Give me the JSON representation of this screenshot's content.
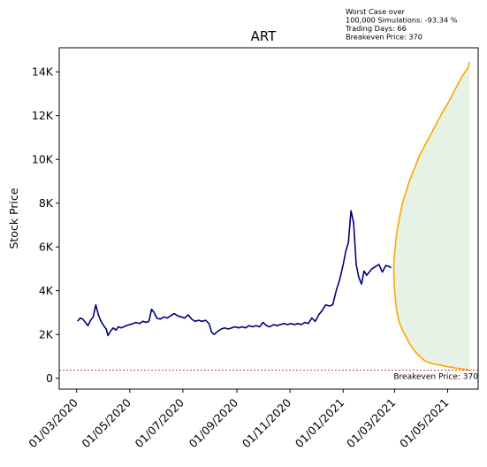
{
  "chart_data": {
    "type": "line",
    "title": "ART",
    "ylabel": "Stock Price",
    "xlabel": "",
    "ylim": [
      -500,
      15100
    ],
    "y_ticks": [
      {
        "value": 0,
        "label": "0"
      },
      {
        "value": 2000,
        "label": "2K"
      },
      {
        "value": 4000,
        "label": "4K"
      },
      {
        "value": 6000,
        "label": "6K"
      },
      {
        "value": 8000,
        "label": "8K"
      },
      {
        "value": 10000,
        "label": "10K"
      },
      {
        "value": 12000,
        "label": "12K"
      },
      {
        "value": 14000,
        "label": "14K"
      }
    ],
    "x_ticks": [
      {
        "date": "2020-03-01",
        "label": "01/03/2020"
      },
      {
        "date": "2020-05-01",
        "label": "01/05/2020"
      },
      {
        "date": "2020-07-01",
        "label": "01/07/2020"
      },
      {
        "date": "2020-09-01",
        "label": "01/09/2020"
      },
      {
        "date": "2020-11-01",
        "label": "01/11/2020"
      },
      {
        "date": "2021-01-01",
        "label": "01/01/2021"
      },
      {
        "date": "2021-03-01",
        "label": "01/03/2021"
      },
      {
        "date": "2021-05-01",
        "label": "01/05/2021"
      }
    ],
    "xlim": [
      "2020-02-10",
      "2021-06-05"
    ],
    "grid": false,
    "series": [
      {
        "role": "historical",
        "color": "#000080",
        "points": [
          [
            "2020-03-02",
            2600
          ],
          [
            "2020-03-05",
            2750
          ],
          [
            "2020-03-08",
            2700
          ],
          [
            "2020-03-11",
            2550
          ],
          [
            "2020-03-14",
            2400
          ],
          [
            "2020-03-17",
            2650
          ],
          [
            "2020-03-20",
            2800
          ],
          [
            "2020-03-23",
            3350
          ],
          [
            "2020-03-26",
            2900
          ],
          [
            "2020-03-29",
            2600
          ],
          [
            "2020-04-01",
            2400
          ],
          [
            "2020-04-04",
            2250
          ],
          [
            "2020-04-06",
            1950
          ],
          [
            "2020-04-09",
            2150
          ],
          [
            "2020-04-12",
            2300
          ],
          [
            "2020-04-15",
            2200
          ],
          [
            "2020-04-18",
            2350
          ],
          [
            "2020-04-21",
            2300
          ],
          [
            "2020-04-24",
            2350
          ],
          [
            "2020-04-27",
            2400
          ],
          [
            "2020-05-01",
            2450
          ],
          [
            "2020-05-05",
            2500
          ],
          [
            "2020-05-08",
            2550
          ],
          [
            "2020-05-12",
            2500
          ],
          [
            "2020-05-16",
            2600
          ],
          [
            "2020-05-20",
            2550
          ],
          [
            "2020-05-23",
            2600
          ],
          [
            "2020-05-26",
            3150
          ],
          [
            "2020-05-29",
            3000
          ],
          [
            "2020-06-01",
            2750
          ],
          [
            "2020-06-05",
            2700
          ],
          [
            "2020-06-09",
            2800
          ],
          [
            "2020-06-13",
            2750
          ],
          [
            "2020-06-17",
            2850
          ],
          [
            "2020-06-21",
            2950
          ],
          [
            "2020-06-25",
            2850
          ],
          [
            "2020-06-29",
            2800
          ],
          [
            "2020-07-03",
            2750
          ],
          [
            "2020-07-07",
            2900
          ],
          [
            "2020-07-11",
            2700
          ],
          [
            "2020-07-15",
            2600
          ],
          [
            "2020-07-19",
            2650
          ],
          [
            "2020-07-23",
            2600
          ],
          [
            "2020-07-27",
            2650
          ],
          [
            "2020-07-31",
            2500
          ],
          [
            "2020-08-03",
            2100
          ],
          [
            "2020-08-06",
            2000
          ],
          [
            "2020-08-10",
            2150
          ],
          [
            "2020-08-14",
            2250
          ],
          [
            "2020-08-18",
            2300
          ],
          [
            "2020-08-22",
            2250
          ],
          [
            "2020-08-26",
            2300
          ],
          [
            "2020-08-30",
            2350
          ],
          [
            "2020-09-03",
            2300
          ],
          [
            "2020-09-07",
            2350
          ],
          [
            "2020-09-11",
            2300
          ],
          [
            "2020-09-15",
            2400
          ],
          [
            "2020-09-19",
            2350
          ],
          [
            "2020-09-23",
            2400
          ],
          [
            "2020-09-27",
            2350
          ],
          [
            "2020-10-01",
            2550
          ],
          [
            "2020-10-05",
            2400
          ],
          [
            "2020-10-09",
            2350
          ],
          [
            "2020-10-13",
            2450
          ],
          [
            "2020-10-17",
            2400
          ],
          [
            "2020-10-21",
            2450
          ],
          [
            "2020-10-25",
            2500
          ],
          [
            "2020-10-29",
            2450
          ],
          [
            "2020-11-02",
            2500
          ],
          [
            "2020-11-06",
            2450
          ],
          [
            "2020-11-10",
            2500
          ],
          [
            "2020-11-14",
            2450
          ],
          [
            "2020-11-18",
            2550
          ],
          [
            "2020-11-22",
            2500
          ],
          [
            "2020-11-26",
            2750
          ],
          [
            "2020-11-30",
            2600
          ],
          [
            "2020-12-04",
            2900
          ],
          [
            "2020-12-08",
            3100
          ],
          [
            "2020-12-12",
            3350
          ],
          [
            "2020-12-16",
            3300
          ],
          [
            "2020-12-20",
            3350
          ],
          [
            "2020-12-24",
            4000
          ],
          [
            "2020-12-28",
            4500
          ],
          [
            "2021-01-01",
            5200
          ],
          [
            "2021-01-04",
            5800
          ],
          [
            "2021-01-07",
            6200
          ],
          [
            "2021-01-10",
            7650
          ],
          [
            "2021-01-13",
            7100
          ],
          [
            "2021-01-16",
            5200
          ],
          [
            "2021-01-19",
            4600
          ],
          [
            "2021-01-22",
            4300
          ],
          [
            "2021-01-25",
            4900
          ],
          [
            "2021-01-28",
            4700
          ],
          [
            "2021-01-31",
            4850
          ],
          [
            "2021-02-03",
            5000
          ],
          [
            "2021-02-07",
            5100
          ],
          [
            "2021-02-11",
            5200
          ],
          [
            "2021-02-15",
            4850
          ],
          [
            "2021-02-19",
            5150
          ],
          [
            "2021-02-23",
            5100
          ],
          [
            "2021-02-25",
            5050
          ]
        ]
      },
      {
        "role": "simulation-upper",
        "color": "#ffa500",
        "points": [
          [
            "2021-02-28",
            5050
          ],
          [
            "2021-03-01",
            5700
          ],
          [
            "2021-03-03",
            6500
          ],
          [
            "2021-03-06",
            7200
          ],
          [
            "2021-03-10",
            8000
          ],
          [
            "2021-03-14",
            8500
          ],
          [
            "2021-03-18",
            9000
          ],
          [
            "2021-03-22",
            9400
          ],
          [
            "2021-03-26",
            9800
          ],
          [
            "2021-03-30",
            10200
          ],
          [
            "2021-04-03",
            10500
          ],
          [
            "2021-04-07",
            10800
          ],
          [
            "2021-04-11",
            11100
          ],
          [
            "2021-04-15",
            11400
          ],
          [
            "2021-04-19",
            11700
          ],
          [
            "2021-04-23",
            12000
          ],
          [
            "2021-04-27",
            12300
          ],
          [
            "2021-05-01",
            12550
          ],
          [
            "2021-05-05",
            12850
          ],
          [
            "2021-05-09",
            13150
          ],
          [
            "2021-05-13",
            13450
          ],
          [
            "2021-05-17",
            13750
          ],
          [
            "2021-05-21",
            14000
          ],
          [
            "2021-05-24",
            14150
          ],
          [
            "2021-05-26",
            14450
          ]
        ]
      },
      {
        "role": "simulation-lower",
        "color": "#ffa500",
        "points": [
          [
            "2021-02-28",
            5050
          ],
          [
            "2021-03-01",
            4000
          ],
          [
            "2021-03-03",
            3200
          ],
          [
            "2021-03-06",
            2600
          ],
          [
            "2021-03-10",
            2200
          ],
          [
            "2021-03-14",
            1900
          ],
          [
            "2021-03-18",
            1600
          ],
          [
            "2021-03-22",
            1350
          ],
          [
            "2021-03-26",
            1150
          ],
          [
            "2021-03-30",
            1000
          ],
          [
            "2021-04-03",
            850
          ],
          [
            "2021-04-07",
            750
          ],
          [
            "2021-04-11",
            700
          ],
          [
            "2021-04-15",
            650
          ],
          [
            "2021-04-19",
            620
          ],
          [
            "2021-04-23",
            600
          ],
          [
            "2021-04-27",
            560
          ],
          [
            "2021-05-01",
            520
          ],
          [
            "2021-05-05",
            500
          ],
          [
            "2021-05-09",
            470
          ],
          [
            "2021-05-13",
            450
          ],
          [
            "2021-05-17",
            420
          ],
          [
            "2021-05-21",
            400
          ],
          [
            "2021-05-24",
            380
          ],
          [
            "2021-05-26",
            340
          ]
        ]
      }
    ],
    "fill_between": {
      "color": "#008000",
      "opacity": 0.1
    },
    "breakeven": {
      "value": 370,
      "color": "#cc0000",
      "label": "Breakeven Price: 370"
    },
    "annotation": [
      "Worst Case over",
      "100,000 Simulations: -93.34 %",
      "Trading Days: 66",
      "Breakeven Price: 370"
    ]
  }
}
